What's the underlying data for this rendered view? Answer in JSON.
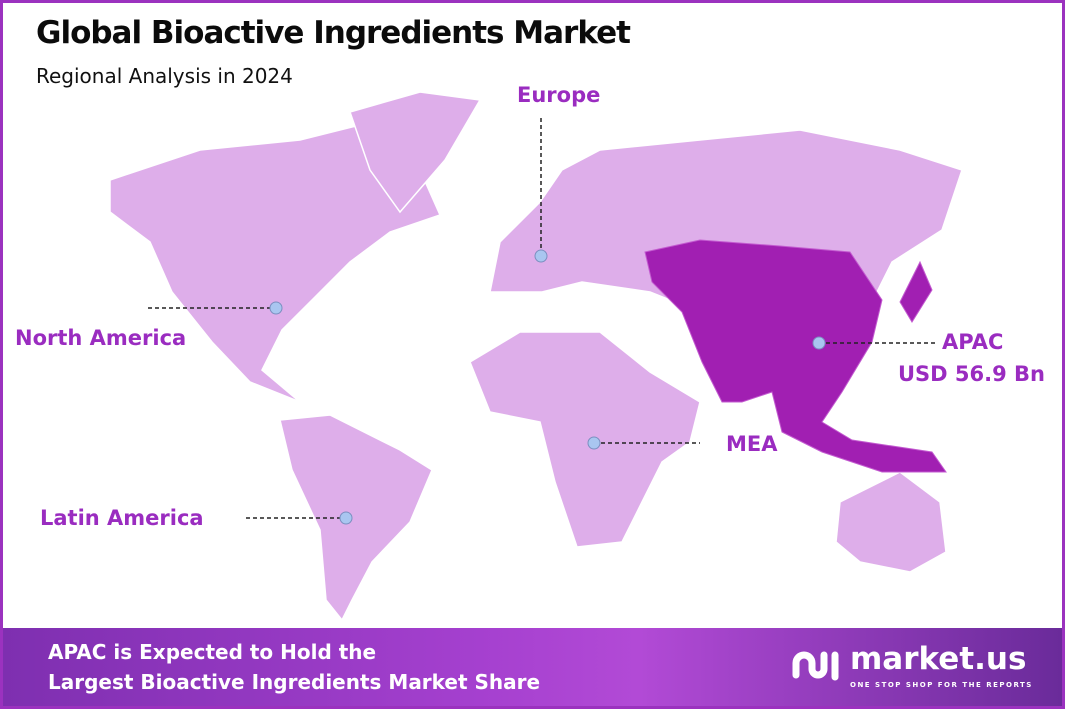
{
  "header": {
    "title": "Global Bioactive Ingredients Market",
    "subtitle": "Regional Analysis in 2024"
  },
  "colors": {
    "region_default": "#deaeea",
    "region_highlight": "#a11fb2",
    "label": "#9a2cc0",
    "border": "#9b32bf",
    "marker": "#a9c6f0"
  },
  "regions": [
    {
      "name": "Europe",
      "highlighted": false
    },
    {
      "name": "North America",
      "highlighted": false
    },
    {
      "name": "APAC",
      "value": "USD 56.9 Bn",
      "highlighted": true
    },
    {
      "name": "MEA",
      "highlighted": false
    },
    {
      "name": "Latin America",
      "highlighted": false
    }
  ],
  "footer": {
    "line1": "APAC is Expected to Hold the",
    "line2": "Largest Bioactive Ingredients Market Share"
  },
  "logo": {
    "name": "market.us",
    "tagline": "ONE STOP SHOP FOR THE REPORTS"
  }
}
